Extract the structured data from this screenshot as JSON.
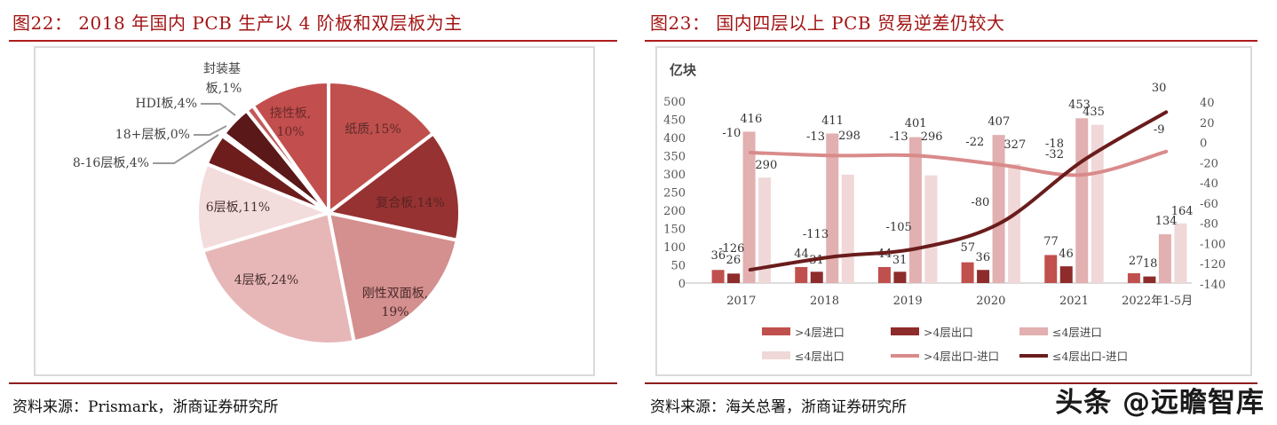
{
  "left": {
    "title": "图22： 2018 年国内 PCB 生产以 4 阶板和双层板为主",
    "source": "资料来源：Prismark，浙商证券研究所"
  },
  "right": {
    "title": "图23： 国内四层以上 PCB 贸易逆差仍较大",
    "source": "资料来源：海关总署，浙商证券研究所",
    "unit_label": "亿块"
  },
  "watermark": "头条 @远瞻智库",
  "colors": {
    "title_red": "#a31515",
    "rule_red": "#b01c1c",
    "gt4_import": "#c0504d",
    "gt4_export": "#8e2b2b",
    "le4_import": "#e2b0b0",
    "le4_export": "#f1d8d8",
    "gt4_net_line": "#d98a8a",
    "le4_net_line": "#6a1c1c"
  },
  "chart_data": [
    {
      "type": "pie",
      "title": "2018 年国内 PCB 生产以 4 阶板和双层板为主",
      "slices": [
        {
          "label": "纸质",
          "value": 15,
          "color": "#c0504d",
          "text": "纸质,15%"
        },
        {
          "label": "复合板",
          "value": 14,
          "color": "#963232",
          "text": "复合板,14%"
        },
        {
          "label": "刚性双面板",
          "value": 19,
          "color": "#d48f8f",
          "text1": "刚性双面板,",
          "text2": "19%"
        },
        {
          "label": "4层板",
          "value": 24,
          "color": "#e7b7b7",
          "text": "4层板,24%"
        },
        {
          "label": "6层板",
          "value": 11,
          "color": "#f3dcdc",
          "text": "6层板,11%"
        },
        {
          "label": "8-16层板",
          "value": 4,
          "color": "#6e1d1d",
          "text": "8-16层板,4%"
        },
        {
          "label": "18+层板",
          "value": 0,
          "color": "#7a2424",
          "text": "18+层板,0%"
        },
        {
          "label": "HDI板",
          "value": 4,
          "color": "#5a1818",
          "text": "HDI板,4%"
        },
        {
          "label": "封装基板",
          "value": 1,
          "color": "#c25a5a",
          "text1": "封装基",
          "text2": "板,1%"
        },
        {
          "label": "挠性板",
          "value": 10,
          "color": "#c24e4e",
          "text1": "挠性板,",
          "text2": "10%"
        }
      ]
    },
    {
      "type": "bar+line",
      "title": "国内四层以上 PCB 贸易逆差仍较大",
      "ylabel": "亿块",
      "categories": [
        "2017",
        "2018",
        "2019",
        "2020",
        "2021",
        "2022年1-5月"
      ],
      "ylim": [
        0,
        500
      ],
      "yticks": [
        0,
        50,
        100,
        150,
        200,
        250,
        300,
        350,
        400,
        450,
        500
      ],
      "y2lim": [
        -140,
        40
      ],
      "y2ticks": [
        40,
        20,
        0,
        -20,
        -40,
        -60,
        -80,
        -100,
        -120,
        -140
      ],
      "series": [
        {
          "name": ">4层进口",
          "type": "bar",
          "axis": "left",
          "values": [
            36,
            44,
            44,
            57,
            77,
            27
          ]
        },
        {
          "name": ">4层出口",
          "type": "bar",
          "axis": "left",
          "values": [
            26,
            31,
            31,
            36,
            46,
            18
          ]
        },
        {
          "name": "≤4层进口",
          "type": "bar",
          "axis": "left",
          "values": [
            416,
            411,
            401,
            407,
            453,
            134
          ]
        },
        {
          "name": "≤4层出口",
          "type": "bar",
          "axis": "left",
          "values": [
            290,
            298,
            296,
            327,
            435,
            164
          ]
        },
        {
          "name": ">4层出口-进口",
          "type": "line",
          "axis": "right",
          "values": [
            -10,
            -13,
            -13,
            -22,
            -32,
            -9
          ]
        },
        {
          "name": "≤4层出口-进口",
          "type": "line",
          "axis": "right",
          "values": [
            -126,
            -113,
            -105,
            -80,
            -18,
            30
          ]
        }
      ],
      "legend": [
        ">4层进口",
        ">4层出口",
        "≤4层进口",
        "≤4层出口",
        ">4层出口-进口",
        "≤4层出口-进口"
      ],
      "legend_position": "bottom"
    }
  ]
}
